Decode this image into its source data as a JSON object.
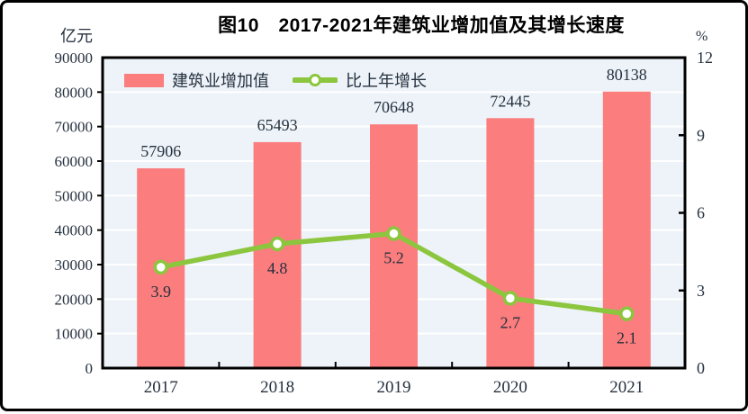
{
  "title": "图10　2017-2021年建筑业增加值及其增长速度",
  "axes": {
    "left_unit": "亿元",
    "right_unit": "%"
  },
  "legend": {
    "items": [
      {
        "label": "建筑业增加值",
        "type": "bar"
      },
      {
        "label": "比上年增长",
        "type": "line"
      }
    ]
  },
  "colors": {
    "bar": "#fb7d7d",
    "line": "#8cc63f",
    "marker_fill": "#ffffff",
    "plot_bg": "#edf3f8",
    "grid": "#ffffff",
    "text": "#25313f",
    "axis": "#000000"
  },
  "chart_data": {
    "type": "bar+line",
    "title": "图10　2017-2021年建筑业增加值及其增长速度",
    "categories": [
      "2017",
      "2018",
      "2019",
      "2020",
      "2021"
    ],
    "series": [
      {
        "name": "建筑业增加值",
        "type": "bar",
        "axis": "left",
        "unit": "亿元",
        "values": [
          57906,
          65493,
          70648,
          72445,
          80138
        ]
      },
      {
        "name": "比上年增长",
        "type": "line",
        "axis": "right",
        "unit": "%",
        "values": [
          3.9,
          4.8,
          5.2,
          2.7,
          2.1
        ]
      }
    ],
    "left_axis": {
      "min": 0,
      "max": 90000,
      "step": 10000,
      "tick_labels": [
        "0",
        "10000",
        "20000",
        "30000",
        "40000",
        "50000",
        "60000",
        "70000",
        "80000",
        "90000"
      ]
    },
    "right_axis": {
      "min": 0,
      "max": 12,
      "step": 3,
      "tick_labels": [
        "0",
        "3",
        "6",
        "9",
        "12"
      ]
    },
    "grid": true,
    "legend_position": "top-left-inside"
  }
}
